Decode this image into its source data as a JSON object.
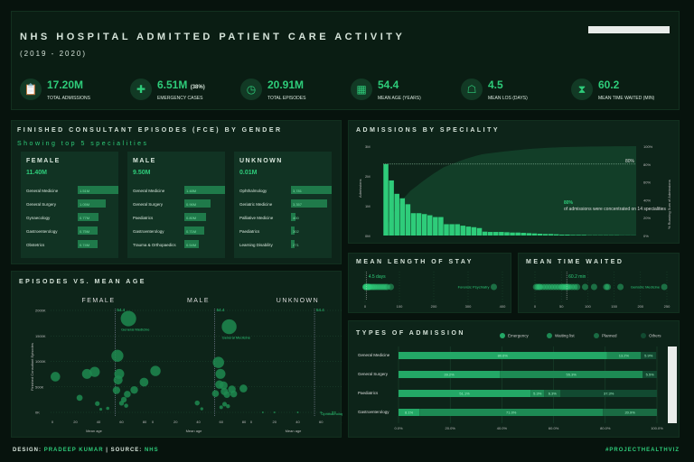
{
  "header": {
    "title": "NHS HOSPITAL ADMITTED PATIENT CARE ACTIVITY",
    "subtitle": "(2019 - 2020)"
  },
  "kpis": [
    {
      "icon": "clipboard-icon",
      "value": "17.20M",
      "extra": "",
      "label": "TOTAL ADMISSIONS"
    },
    {
      "icon": "ambulance-icon",
      "value": "6.51M",
      "extra": "(38%)",
      "label": "EMERGENCY CASES"
    },
    {
      "icon": "clock-icon",
      "value": "20.91M",
      "extra": "",
      "label": "TOTAL EPISODES"
    },
    {
      "icon": "calendar-icon",
      "value": "54.4",
      "extra": "",
      "label": "MEAN AGE (YEARS)"
    },
    {
      "icon": "hospital-bed-icon",
      "value": "4.5",
      "extra": "",
      "label": "MEAN LOS (DAYS)"
    },
    {
      "icon": "hourglass-icon",
      "value": "60.2",
      "extra": "",
      "label": "MEAN TIME WAITED (MIN)"
    }
  ],
  "fce": {
    "title": "FINISHED CONSULTANT EPISODES (FCE) BY GENDER",
    "subtitle": "Showing top 5 specialities",
    "groups": [
      {
        "name": "FEMALE",
        "total": "11.40M",
        "rows": [
          [
            "General Medicine",
            "1.51M",
            1.51
          ],
          [
            "General Surgery",
            "1.05M",
            1.05
          ],
          [
            "Gynaecology",
            "0.77M",
            0.77
          ],
          [
            "Gastroenterology",
            "0.75M",
            0.75
          ],
          [
            "Obstetrics",
            "0.74M",
            0.74
          ]
        ]
      },
      {
        "name": "MALE",
        "total": "9.50M",
        "rows": [
          [
            "General Medicine",
            "1.48M",
            1.48
          ],
          [
            "General Surgery",
            "0.96M",
            0.96
          ],
          [
            "Paediatrics",
            "0.80M",
            0.8
          ],
          [
            "Gastroenterology",
            "0.71M",
            0.71
          ],
          [
            "Trauma & Orthopaedics",
            "0.54M",
            0.54
          ]
        ]
      },
      {
        "name": "UNKNOWN",
        "total": "0.01M",
        "rows": [
          [
            "Ophthalmology",
            "3,781",
            3781
          ],
          [
            "Geriatric Medicine",
            "3,357",
            3357
          ],
          [
            "Palliative Medicine",
            "400",
            400
          ],
          [
            "Paediatrics",
            "302",
            302
          ],
          [
            "Learning Disability",
            "271",
            271
          ]
        ]
      }
    ]
  },
  "chart_data": [
    {
      "type": "bar",
      "title": "ADMISSIONS BY SPECIALITY",
      "ylabel": "Admissions",
      "y2label": "% Running Sum of Admissions",
      "ylim": [
        0,
        3
      ],
      "yticks": [
        "0M",
        "1M",
        "2M",
        "3M"
      ],
      "y2ticks": [
        "0%",
        "20%",
        "40%",
        "60%",
        "80%",
        "100%"
      ],
      "values": [
        2.4,
        1.85,
        1.4,
        1.25,
        1.05,
        0.75,
        0.75,
        0.72,
        0.68,
        0.62,
        0.62,
        0.38,
        0.38,
        0.38,
        0.33,
        0.3,
        0.28,
        0.25,
        0.13,
        0.12,
        0.12,
        0.12,
        0.11,
        0.1,
        0.1,
        0.09,
        0.08,
        0.07,
        0.06,
        0.05,
        0.05,
        0.04,
        0.03,
        0.03,
        0.02,
        0.02,
        0.02,
        0.01,
        0.01,
        0.01,
        0.01,
        0.01,
        0.01,
        0.005,
        0.005,
        0.005
      ],
      "reference_label": "80%",
      "annotation": {
        "highlight": "80%",
        "text": "of admissions were concentrated on 14 specialities"
      }
    },
    {
      "type": "scatter",
      "title": "EPISODES VS. MEAN AGE",
      "ylabel": "Finished Consultant Episodes",
      "xlabel": "Mean age",
      "xlim": [
        0,
        80
      ],
      "ylim": [
        0,
        2000
      ],
      "yticks": [
        "0K",
        "500K",
        "1000K",
        "1500K",
        "2000K"
      ],
      "xticks": [
        "0",
        "20",
        "40",
        "60",
        "80"
      ],
      "mean_label": "54.4",
      "mean": 54.4,
      "panels": [
        {
          "name": "FEMALE",
          "label_point": "General Medicine",
          "points": [
            [
              2.6,
              700
            ],
            [
              30,
              754
            ],
            [
              36.7,
              795
            ],
            [
              56.4,
              1110
            ],
            [
              58,
              754
            ],
            [
              57,
              635
            ],
            [
              66,
              1840
            ],
            [
              55.6,
              433
            ],
            [
              65,
              356
            ],
            [
              71,
              440
            ],
            [
              79.5,
              593
            ],
            [
              23.6,
              285
            ],
            [
              39,
              172
            ],
            [
              62,
              250
            ],
            [
              60,
              180
            ],
            [
              64,
              130
            ],
            [
              48,
              80
            ],
            [
              42,
              60
            ]
          ]
        },
        {
          "name": "MALE",
          "label_point": "General Medicine",
          "points": [
            [
              2.4,
              813
            ],
            [
              57.6,
              980
            ],
            [
              59.4,
              754
            ],
            [
              67,
              1680
            ],
            [
              58.5,
              546
            ],
            [
              62,
              528
            ],
            [
              69.4,
              451
            ],
            [
              79.5,
              469
            ],
            [
              55,
              368
            ],
            [
              62.8,
              410
            ],
            [
              65,
              350
            ],
            [
              71,
              362
            ],
            [
              39,
              184
            ],
            [
              63,
              160
            ],
            [
              60,
              100
            ],
            [
              66,
              120
            ],
            [
              43,
              70
            ]
          ]
        },
        {
          "name": "UNKNOWN",
          "label_point": "Ophthalmology",
          "points": [
            [
              70,
              4
            ],
            [
              72,
              3
            ],
            [
              60,
              1
            ],
            [
              40,
              1
            ],
            [
              20,
              1
            ],
            [
              10,
              1
            ]
          ]
        }
      ]
    },
    {
      "type": "scatter",
      "title": "MEAN LENGTH OF STAY",
      "xlim": [
        0,
        400
      ],
      "xticks": [
        "0",
        "100",
        "200",
        "300",
        "400"
      ],
      "mean": 4.5,
      "mean_label": "4.5 days",
      "outlier_label": "Forensic Psychiatry",
      "values": [
        1,
        2,
        3,
        4,
        5,
        6,
        7,
        8,
        9,
        10,
        12,
        14,
        18,
        22,
        26,
        30,
        35,
        40,
        45,
        50,
        55,
        60,
        65,
        75,
        375
      ]
    },
    {
      "type": "scatter",
      "title": "MEAN TIME WAITED",
      "xlim": [
        0,
        250
      ],
      "xticks": [
        "0",
        "50",
        "100",
        "150",
        "200",
        "250"
      ],
      "mean": 60.2,
      "mean_label": "60.2 min",
      "outlier_label": "Geriatric Medicine",
      "values": [
        2,
        5,
        8,
        10,
        15,
        20,
        25,
        30,
        35,
        40,
        45,
        50,
        52,
        55,
        58,
        60,
        62,
        65,
        70,
        75,
        80,
        95,
        112,
        135,
        138,
        162,
        245
      ]
    },
    {
      "type": "bar",
      "stacked": true,
      "orientation": "horizontal",
      "title": "TYPES OF ADMISSION",
      "legend": [
        "Emergency",
        "Waiting list",
        "Planned",
        "Others"
      ],
      "legend_position": "top-right",
      "xticks": [
        "0.0%",
        "20.0%",
        "40.0%",
        "60.0%",
        "80.0%",
        "100.0%"
      ],
      "categories": [
        "General Medicine",
        "General Surgery",
        "Paediatrics",
        "Gastroenterology"
      ],
      "rows": [
        [
          80.6,
          13.2,
          0,
          5.9
        ],
        [
          39.2,
          55.3,
          0,
          5.5
        ],
        [
          51.1,
          5.3,
          6.3,
          37.3
        ],
        [
          8.1,
          71.0,
          20.9,
          0
        ]
      ]
    }
  ],
  "colors": {
    "emergency": "#23a866",
    "waiting": "#1d8a54",
    "planned": "#1a6b43",
    "others": "#124a31",
    "accent": "#2ecc7a"
  },
  "footer": {
    "design": "DESIGN:",
    "author": "PRADEEP KUMAR",
    "sep": "|",
    "source": "SOURCE:",
    "source_name": "NHS",
    "tag": "#PROJECTHEALTHVIZ"
  }
}
